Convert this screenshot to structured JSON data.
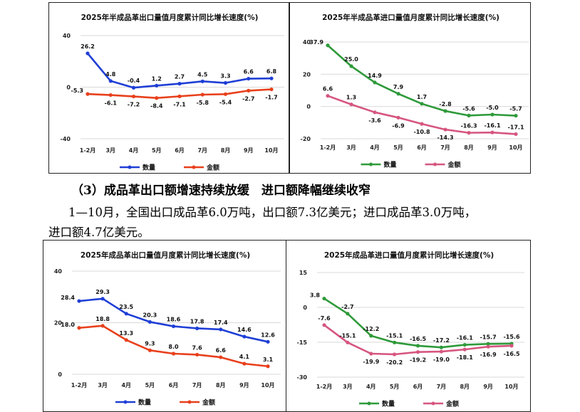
{
  "text": {
    "heading": "（3）成品革出口额增速持续放缓　进口额降幅继续收窄",
    "para_line1": "1—10月，全国出口成品革6.0万吨，出口额7.3亿美元；进口成品革3.0万吨，",
    "para_line2": "进口额4.7亿美元。"
  },
  "chart_data": [
    {
      "type": "line",
      "title": "2025年半成品革出口量值月度累计同比增长速度(%)",
      "categories": [
        "1-2月",
        "3月",
        "4月",
        "5月",
        "6月",
        "7月",
        "8月",
        "9月",
        "10月"
      ],
      "ylim": [
        -40,
        40
      ],
      "yticks": [
        -40,
        0,
        40
      ],
      "grid": true,
      "legend": "bottom",
      "series": [
        {
          "name": "数量",
          "color": "#1f3fd6",
          "values": [
            26.2,
            4.8,
            -0.4,
            1.2,
            2.7,
            4.5,
            3.3,
            6.6,
            6.8
          ]
        },
        {
          "name": "金额",
          "color": "#e8401c",
          "values": [
            -5.3,
            -6.1,
            -7.2,
            -8.4,
            -7.1,
            -5.8,
            -5.4,
            -2.7,
            -1.7
          ]
        }
      ]
    },
    {
      "type": "line",
      "title": "2025年半成品革进口量值月度累计同比增长速度(%)",
      "categories": [
        "1-2月",
        "3月",
        "4月",
        "5月",
        "6月",
        "7月",
        "8月",
        "9月",
        "10月"
      ],
      "ylim": [
        -20,
        40
      ],
      "yticks": [
        -20,
        0,
        20,
        40
      ],
      "grid": true,
      "legend": "bottom",
      "series": [
        {
          "name": "数量",
          "color": "#2e9a3a",
          "values": [
            37.9,
            25.0,
            14.9,
            7.9,
            1.7,
            -2.8,
            -5.6,
            -5.0,
            -5.7
          ]
        },
        {
          "name": "金额",
          "color": "#d6567f",
          "values": [
            6.6,
            1.3,
            -3.6,
            -6.9,
            -10.8,
            -14.3,
            -16.3,
            -16.1,
            -17.1
          ]
        }
      ]
    },
    {
      "type": "line",
      "title": "2025年成品革出口量值月度累计同比增长速度(%)",
      "categories": [
        "1-2月",
        "3月",
        "4月",
        "5月",
        "6月",
        "7月",
        "8月",
        "9月",
        "10月"
      ],
      "ylim": [
        0,
        40
      ],
      "yticks": [
        0,
        20,
        40
      ],
      "grid": true,
      "legend": "bottom",
      "series": [
        {
          "name": "数量",
          "color": "#1f3fd6",
          "values": [
            28.4,
            29.3,
            23.5,
            20.3,
            18.6,
            17.8,
            17.4,
            14.6,
            12.6
          ]
        },
        {
          "name": "金额",
          "color": "#e8401c",
          "values": [
            18.0,
            18.8,
            13.3,
            9.3,
            8.0,
            7.6,
            6.6,
            4.1,
            3.1
          ]
        }
      ]
    },
    {
      "type": "line",
      "title": "2025年成品革进口量值月度累计同比增长速度(%)",
      "categories": [
        "1-2月",
        "3月",
        "4月",
        "5月",
        "6月",
        "7月",
        "8月",
        "9月",
        "10月"
      ],
      "ylim": [
        -30,
        15
      ],
      "yticks": [
        -30,
        -15,
        0,
        15
      ],
      "grid": true,
      "legend": "bottom",
      "series": [
        {
          "name": "数量",
          "color": "#2e9a3a",
          "values": [
            3.8,
            -2.7,
            -12.2,
            -15.1,
            -16.5,
            -17.2,
            -16.1,
            -15.7,
            -15.6
          ]
        },
        {
          "name": "金额",
          "color": "#d6567f",
          "values": [
            -7.6,
            -15.1,
            -19.9,
            -20.2,
            -19.2,
            -19.0,
            -18.1,
            -16.9,
            -16.5
          ]
        }
      ]
    }
  ]
}
